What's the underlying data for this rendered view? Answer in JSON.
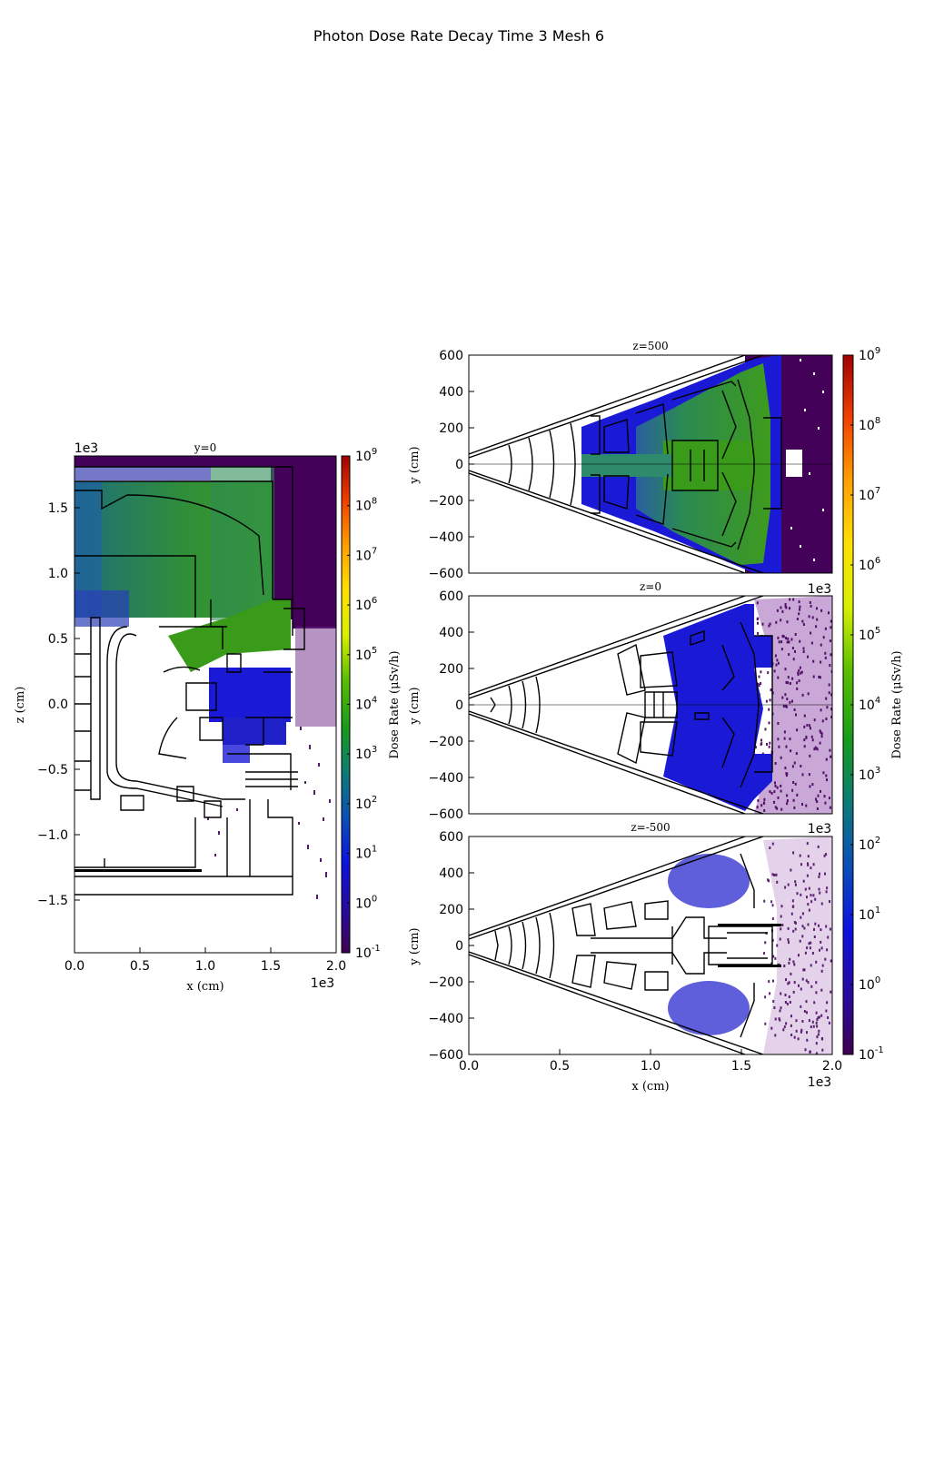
{
  "figure": {
    "title": "Photon Dose Rate Decay Time 3 Mesh 6"
  },
  "chart_data": [
    {
      "id": "y0",
      "type": "heatmap",
      "title": "y=0",
      "xlabel": "x  (cm)",
      "ylabel": "z  (cm)",
      "xlim": [
        0,
        2000
      ],
      "ylim": [
        -1900,
        1900
      ],
      "x_ticks": [
        "0.0",
        "0.5",
        "1.0",
        "1.5",
        "2.0"
      ],
      "y_ticks": [
        "1.5",
        "1.0",
        "0.5",
        "0.0",
        "−0.5",
        "−1.0",
        "−1.5"
      ],
      "x_offset": "1e3",
      "y_offset": "1e3",
      "colorbar": {
        "label": "Dose Rate  (μSv/h)",
        "scale": "log",
        "range": [
          0.1,
          1000000000
        ],
        "ticks": [
          {
            "base": "10",
            "exp": "9"
          },
          {
            "base": "10",
            "exp": "8"
          },
          {
            "base": "10",
            "exp": "7"
          },
          {
            "base": "10",
            "exp": "6"
          },
          {
            "base": "10",
            "exp": "5"
          },
          {
            "base": "10",
            "exp": "4"
          },
          {
            "base": "10",
            "exp": "3"
          },
          {
            "base": "10",
            "exp": "2"
          },
          {
            "base": "10",
            "exp": "1"
          },
          {
            "base": "10",
            "exp": "0"
          },
          {
            "base": "10",
            "exp": "-1"
          }
        ]
      }
    },
    {
      "id": "z500",
      "type": "heatmap",
      "title": "z=500",
      "xlabel": "",
      "ylabel": "y  (cm)",
      "xlim": [
        0,
        2000
      ],
      "ylim": [
        -600,
        600
      ],
      "y_ticks": [
        "600",
        "400",
        "200",
        "0",
        "−200",
        "−400",
        "−600"
      ]
    },
    {
      "id": "z0",
      "type": "heatmap",
      "title": "z=0",
      "xlabel": "",
      "ylabel": "y  (cm)",
      "xlim": [
        0,
        2000
      ],
      "ylim": [
        -600,
        600
      ],
      "x_offset": "1e3",
      "y_ticks": [
        "600",
        "400",
        "200",
        "0",
        "−200",
        "−400",
        "−600"
      ]
    },
    {
      "id": "zm500",
      "type": "heatmap",
      "title": "z=-500",
      "xlabel": "x  (cm)",
      "ylabel": "y  (cm)",
      "xlim": [
        0,
        2000
      ],
      "ylim": [
        -600,
        600
      ],
      "x_offset": "1e3",
      "x_ticks": [
        "0.0",
        "0.5",
        "1.0",
        "1.5",
        "2.0"
      ],
      "y_ticks": [
        "600",
        "400",
        "200",
        "0",
        "−200",
        "−400",
        "−600"
      ],
      "colorbar": {
        "label": "Dose Rate  (μSv/h)",
        "scale": "log",
        "range": [
          0.1,
          1000000000
        ],
        "ticks": [
          {
            "base": "10",
            "exp": "9"
          },
          {
            "base": "10",
            "exp": "8"
          },
          {
            "base": "10",
            "exp": "7"
          },
          {
            "base": "10",
            "exp": "6"
          },
          {
            "base": "10",
            "exp": "5"
          },
          {
            "base": "10",
            "exp": "4"
          },
          {
            "base": "10",
            "exp": "3"
          },
          {
            "base": "10",
            "exp": "2"
          },
          {
            "base": "10",
            "exp": "1"
          },
          {
            "base": "10",
            "exp": "0"
          },
          {
            "base": "10",
            "exp": "-1"
          }
        ]
      }
    }
  ],
  "colors": {
    "low": "#44015a",
    "blue": "#1a1ad6",
    "teal": "#1f7a6c",
    "green": "#3a9a1a",
    "yellow": "#f4ee00",
    "orange": "#ff8a00",
    "high": "#b30000"
  }
}
